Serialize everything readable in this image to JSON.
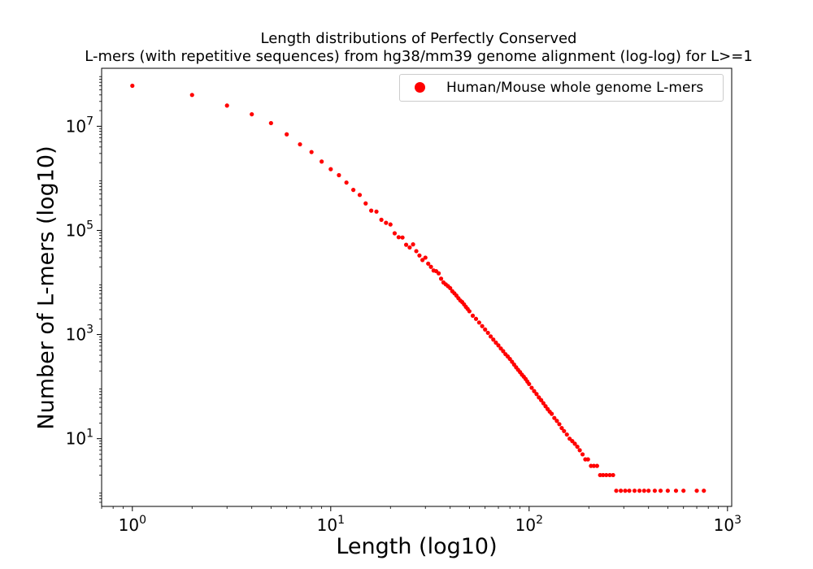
{
  "chart_data": {
    "type": "scatter",
    "title_line1": "Length distributions of Perfectly Conserved",
    "title_line2": "L-mers (with repetitive sequences) from hg38/mm39 genome alignment (log-log) for L>=1",
    "xlabel": "Length (log10)",
    "ylabel": "Number of L-mers (log10)",
    "xscale": "log",
    "yscale": "log",
    "xlim": [
      0.7,
      1050
    ],
    "ylim": [
      0.5,
      130000000
    ],
    "grid": false,
    "legend_position": "top-right",
    "x_ticks": [
      {
        "value": 1,
        "base": "10",
        "exp": "0"
      },
      {
        "value": 10,
        "base": "10",
        "exp": "1"
      },
      {
        "value": 100,
        "base": "10",
        "exp": "2"
      },
      {
        "value": 1000,
        "base": "10",
        "exp": "3"
      }
    ],
    "y_ticks": [
      {
        "value": 10,
        "base": "10",
        "exp": "1"
      },
      {
        "value": 1000,
        "base": "10",
        "exp": "3"
      },
      {
        "value": 100000,
        "base": "10",
        "exp": "5"
      },
      {
        "value": 10000000,
        "base": "10",
        "exp": "7"
      }
    ],
    "color": "#ff0000",
    "series": [
      {
        "name": "Human/Mouse whole genome L-mers",
        "color": "#ff0000",
        "points": [
          [
            1,
            60000000
          ],
          [
            2,
            40000000
          ],
          [
            3,
            25000000
          ],
          [
            4,
            17000000
          ],
          [
            5,
            11500000
          ],
          [
            6,
            7000000
          ],
          [
            7,
            4500000
          ],
          [
            8,
            3200000
          ],
          [
            9,
            2100000
          ],
          [
            10,
            1500000
          ],
          [
            11,
            1150000
          ],
          [
            12,
            830000
          ],
          [
            13,
            600000
          ],
          [
            14,
            480000
          ],
          [
            15,
            330000
          ],
          [
            16,
            240000
          ],
          [
            17,
            230000
          ],
          [
            18,
            160000
          ],
          [
            19,
            140000
          ],
          [
            20,
            130000
          ],
          [
            21,
            88000
          ],
          [
            22,
            74000
          ],
          [
            23,
            73000
          ],
          [
            24,
            53000
          ],
          [
            25,
            47000
          ],
          [
            26,
            54000
          ],
          [
            27,
            40000
          ],
          [
            28,
            33000
          ],
          [
            29,
            27000
          ],
          [
            30,
            30000
          ],
          [
            31,
            23000
          ],
          [
            32,
            20000
          ],
          [
            33,
            17000
          ],
          [
            34,
            16500
          ],
          [
            35,
            15000
          ],
          [
            36,
            11800
          ],
          [
            37,
            10000
          ],
          [
            38,
            9200
          ],
          [
            39,
            8500
          ],
          [
            40,
            7800
          ],
          [
            41,
            6800
          ],
          [
            42,
            6200
          ],
          [
            43,
            5600
          ],
          [
            44,
            5000
          ],
          [
            45,
            4500
          ],
          [
            46,
            4200
          ],
          [
            47,
            3800
          ],
          [
            48,
            3400
          ],
          [
            49,
            3100
          ],
          [
            50,
            2800
          ],
          [
            52,
            2300
          ],
          [
            54,
            2000
          ],
          [
            56,
            1700
          ],
          [
            58,
            1450
          ],
          [
            60,
            1250
          ],
          [
            62,
            1080
          ],
          [
            64,
            920
          ],
          [
            66,
            800
          ],
          [
            68,
            700
          ],
          [
            70,
            620
          ],
          [
            72,
            540
          ],
          [
            74,
            480
          ],
          [
            76,
            420
          ],
          [
            78,
            380
          ],
          [
            80,
            340
          ],
          [
            82,
            300
          ],
          [
            84,
            265
          ],
          [
            86,
            235
          ],
          [
            88,
            210
          ],
          [
            90,
            190
          ],
          [
            92,
            170
          ],
          [
            94,
            155
          ],
          [
            96,
            140
          ],
          [
            98,
            125
          ],
          [
            100,
            112
          ],
          [
            103,
            95
          ],
          [
            106,
            82
          ],
          [
            109,
            72
          ],
          [
            112,
            62
          ],
          [
            115,
            55
          ],
          [
            118,
            48
          ],
          [
            121,
            42
          ],
          [
            124,
            37
          ],
          [
            127,
            33
          ],
          [
            130,
            30
          ],
          [
            134,
            25
          ],
          [
            138,
            22
          ],
          [
            142,
            19
          ],
          [
            146,
            16
          ],
          [
            150,
            14
          ],
          [
            155,
            12
          ],
          [
            160,
            10
          ],
          [
            165,
            9
          ],
          [
            170,
            8
          ],
          [
            175,
            7
          ],
          [
            180,
            6
          ],
          [
            186,
            5
          ],
          [
            192,
            4
          ],
          [
            198,
            4
          ],
          [
            205,
            3
          ],
          [
            212,
            3
          ],
          [
            220,
            3
          ],
          [
            228,
            2
          ],
          [
            236,
            2
          ],
          [
            245,
            2
          ],
          [
            255,
            2
          ],
          [
            265,
            2
          ],
          [
            275,
            1
          ],
          [
            290,
            1
          ],
          [
            305,
            1
          ],
          [
            320,
            1
          ],
          [
            340,
            1
          ],
          [
            360,
            1
          ],
          [
            380,
            1
          ],
          [
            400,
            1
          ],
          [
            430,
            1
          ],
          [
            460,
            1
          ],
          [
            500,
            1
          ],
          [
            550,
            1
          ],
          [
            600,
            1
          ],
          [
            700,
            1
          ],
          [
            760,
            1
          ]
        ]
      }
    ]
  }
}
